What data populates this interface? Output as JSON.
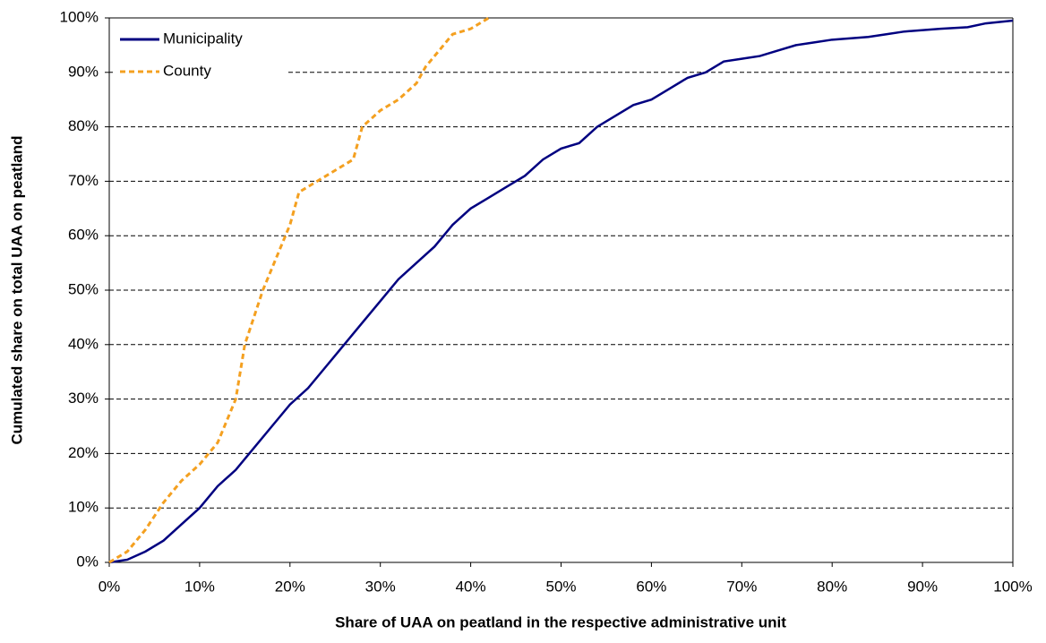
{
  "chart_data": {
    "type": "line",
    "x_label": "Share of UAA on peatland in the respective administrative unit",
    "y_label": "Cumulated share on total UAA on peatland",
    "xlim": [
      0,
      100
    ],
    "ylim": [
      0,
      100
    ],
    "xticks": [
      {
        "value": 0,
        "label": "0%"
      },
      {
        "value": 10,
        "label": "10%"
      },
      {
        "value": 20,
        "label": "20%"
      },
      {
        "value": 30,
        "label": "30%"
      },
      {
        "value": 40,
        "label": "40%"
      },
      {
        "value": 50,
        "label": "50%"
      },
      {
        "value": 60,
        "label": "60%"
      },
      {
        "value": 70,
        "label": "70%"
      },
      {
        "value": 80,
        "label": "80%"
      },
      {
        "value": 90,
        "label": "90%"
      },
      {
        "value": 100,
        "label": "100%"
      }
    ],
    "yticks": [
      {
        "value": 0,
        "label": "0%"
      },
      {
        "value": 10,
        "label": "10%"
      },
      {
        "value": 20,
        "label": "20%"
      },
      {
        "value": 30,
        "label": "30%"
      },
      {
        "value": 40,
        "label": "40%"
      },
      {
        "value": 50,
        "label": "50%"
      },
      {
        "value": 60,
        "label": "60%"
      },
      {
        "value": 70,
        "label": "70%"
      },
      {
        "value": 80,
        "label": "80%"
      },
      {
        "value": 90,
        "label": "90%"
      },
      {
        "value": 100,
        "label": "100%"
      }
    ],
    "grid": true,
    "legend": "top-left",
    "series": [
      {
        "name": "Municipality",
        "color": "#000080",
        "dash": false,
        "x": [
          0,
          2,
          4,
          6,
          8,
          10,
          12,
          14,
          16,
          18,
          20,
          22,
          24,
          26,
          28,
          30,
          32,
          34,
          36,
          38,
          40,
          42,
          44,
          46,
          48,
          50,
          52,
          54,
          56,
          58,
          60,
          62,
          64,
          66,
          68,
          70,
          72,
          74,
          76,
          78,
          80,
          84,
          86,
          88,
          92,
          95,
          97,
          100
        ],
        "values": [
          0,
          0.5,
          2,
          4,
          7,
          10,
          14,
          17,
          21,
          25,
          29,
          32,
          36,
          40,
          44,
          48,
          52,
          55,
          58,
          62,
          65,
          67,
          69,
          71,
          74,
          76,
          77,
          80,
          82,
          84,
          85,
          87,
          89,
          90,
          92,
          92.5,
          93,
          94,
          95,
          95.5,
          96,
          96.5,
          97,
          97.5,
          98,
          98.3,
          99,
          99.5
        ]
      },
      {
        "name": "County",
        "color": "#f4a020",
        "dash": true,
        "x": [
          0,
          2,
          4,
          6,
          8,
          10,
          12,
          14,
          15,
          17,
          19,
          20,
          21,
          23,
          25,
          27,
          28,
          30,
          32,
          34,
          35,
          37,
          38,
          40,
          42
        ],
        "values": [
          0,
          2,
          6,
          11,
          15,
          18,
          22,
          30,
          40,
          50,
          58,
          62,
          68,
          70,
          72,
          74,
          80,
          83,
          85,
          88,
          91,
          95,
          97,
          98,
          100
        ]
      }
    ]
  }
}
